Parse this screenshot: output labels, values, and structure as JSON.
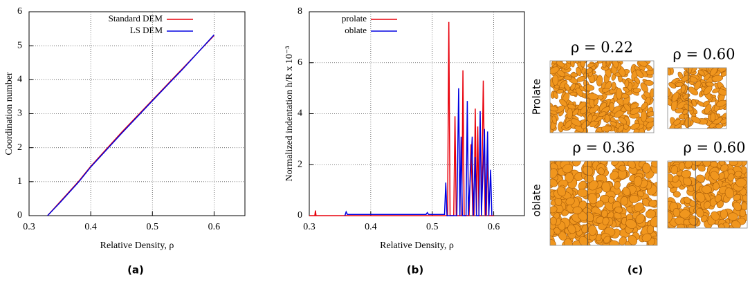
{
  "chart_data": [
    {
      "type": "line",
      "caption": "(a)",
      "x_label": "Relative Density, ρ",
      "y_label": "Coordination number",
      "xlim": [
        0.3,
        0.65
      ],
      "xticks": [
        0.3,
        0.4,
        0.5,
        0.6
      ],
      "ylim": [
        0,
        6
      ],
      "yticks": [
        0,
        1,
        2,
        3,
        4,
        5,
        6
      ],
      "grid": true,
      "legend": "top-left",
      "series": [
        {
          "name": "Standard DEM",
          "color": "#e8000b",
          "x": [
            0.33,
            0.35,
            0.38,
            0.4,
            0.45,
            0.5,
            0.55,
            0.6
          ],
          "values": [
            0,
            0.4,
            1.0,
            1.45,
            2.45,
            3.4,
            4.35,
            5.3
          ]
        },
        {
          "name": "LS DEM",
          "color": "#0000e0",
          "x": [
            0.33,
            0.35,
            0.38,
            0.4,
            0.45,
            0.5,
            0.55,
            0.6
          ],
          "values": [
            0,
            0.38,
            0.98,
            1.43,
            2.42,
            3.38,
            4.33,
            5.32
          ]
        }
      ]
    },
    {
      "type": "line",
      "caption": "(b)",
      "x_label": "Relative Density, ρ",
      "y_label": "Normalized indentation h/R  x 10⁻³",
      "xlim": [
        0.3,
        0.65
      ],
      "xticks": [
        0.3,
        0.4,
        0.5,
        0.6
      ],
      "ylim": [
        0,
        8
      ],
      "yticks": [
        0,
        2,
        4,
        6,
        8
      ],
      "grid": true,
      "legend": "top-left",
      "series": [
        {
          "name": "prolate",
          "color": "#e8000b",
          "x": [
            0.3,
            0.309,
            0.31,
            0.311,
            0.52,
            0.525,
            0.527,
            0.529,
            0.535,
            0.537,
            0.539,
            0.548,
            0.55,
            0.552,
            0.56,
            0.563,
            0.566,
            0.568,
            0.57,
            0.572,
            0.574,
            0.576,
            0.58,
            0.583,
            0.586,
            0.588,
            0.59,
            0.592,
            0.6
          ],
          "values": [
            0,
            0,
            0.2,
            0,
            0,
            0,
            7.6,
            0,
            0,
            3.9,
            0,
            0,
            5.7,
            0,
            0,
            2.8,
            0,
            0,
            4.2,
            0,
            3.5,
            0,
            0,
            5.3,
            0,
            0,
            2.5,
            0,
            0
          ]
        },
        {
          "name": "oblate",
          "color": "#0000e0",
          "x": [
            0.358,
            0.36,
            0.362,
            0.4,
            0.45,
            0.49,
            0.492,
            0.494,
            0.52,
            0.522,
            0.524,
            0.54,
            0.543,
            0.545,
            0.547,
            0.549,
            0.555,
            0.557,
            0.559,
            0.565,
            0.567,
            0.57,
            0.572,
            0.576,
            0.578,
            0.58,
            0.585,
            0.587,
            0.59,
            0.592,
            0.595,
            0.597
          ],
          "values": [
            0,
            0.15,
            0.05,
            0.05,
            0.05,
            0.05,
            0.12,
            0.05,
            0.05,
            1.3,
            0,
            0,
            5.0,
            0,
            3.1,
            0,
            0,
            4.5,
            0,
            3.1,
            0,
            2.3,
            0,
            0,
            4.1,
            0,
            3.4,
            0,
            3.3,
            0,
            1.8,
            0
          ]
        }
      ]
    }
  ],
  "panel_c": {
    "caption": "(c)",
    "rows": [
      {
        "label": "Prolate",
        "densities": [
          "ρ = 0.22",
          "ρ = 0.60"
        ]
      },
      {
        "label": "oblate",
        "densities": [
          "ρ = 0.36",
          "ρ = 0.60"
        ]
      }
    ]
  }
}
